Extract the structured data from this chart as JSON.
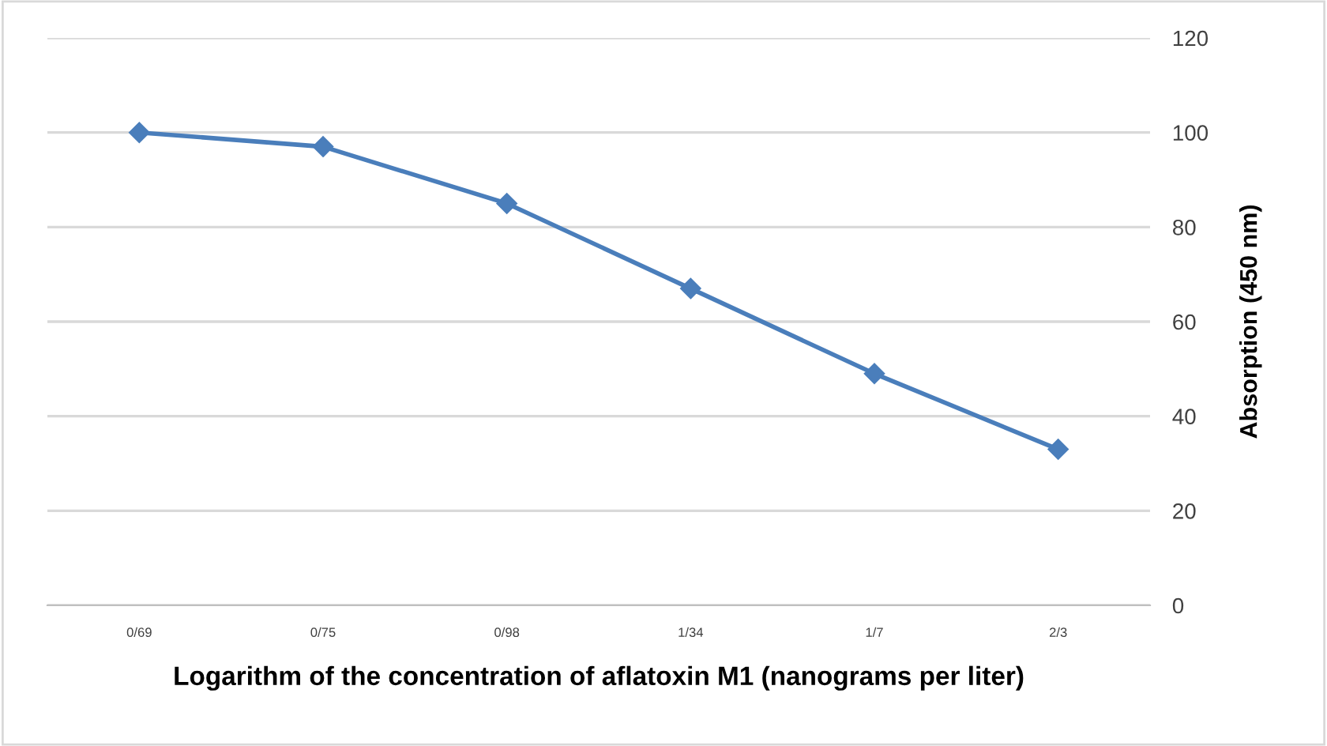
{
  "chart_data": {
    "type": "line",
    "xlabel": "Logarithm of the concentration of aflatoxin M1 (nanograms per liter)",
    "ylabel": "Absorption (450 nm)",
    "categories": [
      "0/69",
      "0/75",
      "0/98",
      "1/34",
      "1/7",
      "2/3"
    ],
    "series": [
      {
        "color": "#4a7ebb",
        "values": [
          100,
          97,
          85,
          67,
          49,
          33
        ]
      }
    ],
    "ylim": [
      0,
      120
    ],
    "yticks": [
      0,
      20,
      40,
      60,
      80,
      100,
      120
    ],
    "grid": "y",
    "marker": "diamond",
    "line_style": "solid"
  }
}
